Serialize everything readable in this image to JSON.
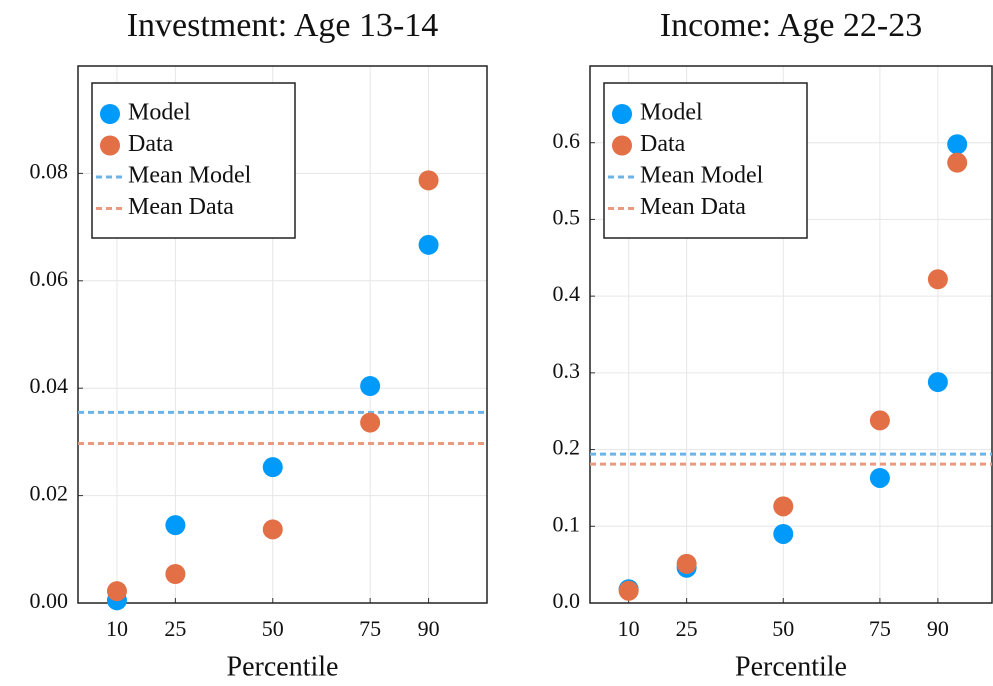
{
  "chart_data": [
    {
      "type": "scatter",
      "title": "Investment: Age 13-14",
      "xlabel": "Percentile",
      "x": [
        10,
        25,
        50,
        75,
        90
      ],
      "series": [
        {
          "name": "Model",
          "color": "#009AFA",
          "values": [
            0.0005,
            0.0145,
            0.0253,
            0.0404,
            0.0667
          ]
        },
        {
          "name": "Data",
          "color": "#E26F46",
          "values": [
            0.0022,
            0.0054,
            0.0137,
            0.0336,
            0.0787
          ]
        }
      ],
      "hlines": [
        {
          "name": "Mean Model",
          "color": "#6CB4E8",
          "value": 0.0355
        },
        {
          "name": "Mean Data",
          "color": "#EA9A7E",
          "value": 0.0297
        }
      ],
      "xlim": [
        0,
        105
      ],
      "xticks": [
        10,
        25,
        50,
        75,
        90
      ],
      "ylim": [
        0,
        0.1
      ],
      "yticks": [
        {
          "value": 0,
          "label": "0.00"
        },
        {
          "value": 0.02,
          "label": "0.02"
        },
        {
          "value": 0.04,
          "label": "0.04"
        },
        {
          "value": 0.06,
          "label": "0.06"
        },
        {
          "value": 0.08,
          "label": "0.08"
        }
      ],
      "grid": true,
      "legend": "top-left"
    },
    {
      "type": "scatter",
      "title": "Income: Age 22-23",
      "xlabel": "Percentile",
      "x": [
        10,
        25,
        50,
        75,
        90,
        95
      ],
      "series": [
        {
          "name": "Model",
          "color": "#009AFA",
          "values": [
            0.018,
            0.046,
            0.09,
            0.163,
            0.288,
            0.598
          ]
        },
        {
          "name": "Data",
          "color": "#E26F46",
          "values": [
            0.016,
            0.051,
            0.126,
            0.238,
            0.422,
            0.574
          ]
        }
      ],
      "hlines": [
        {
          "name": "Mean Model",
          "color": "#6CB4E8",
          "value": 0.194
        },
        {
          "name": "Mean Data",
          "color": "#EA9A7E",
          "value": 0.181
        }
      ],
      "xlim": [
        0,
        104
      ],
      "xticks": [
        10,
        25,
        50,
        75,
        90
      ],
      "ylim": [
        0,
        0.7
      ],
      "yticks": [
        {
          "value": 0,
          "label": "0.0"
        },
        0.1,
        0.2,
        0.3,
        0.4,
        0.5,
        0.6
      ],
      "grid": true,
      "legend": "top-left"
    }
  ]
}
